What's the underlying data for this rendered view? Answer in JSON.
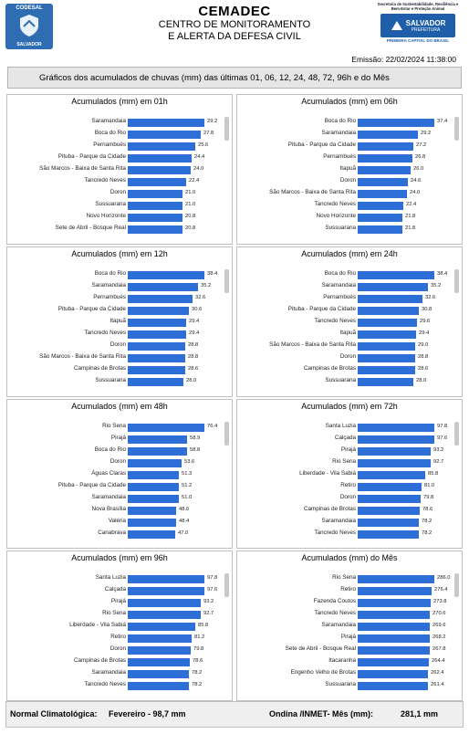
{
  "header": {
    "logo_left_top": "CODESAL",
    "logo_left_bottom": "SALVADOR",
    "title": "CEMADEC",
    "subtitle_1": "CENTRO DE MONITORAMENTO",
    "subtitle_2": "E ALERTA DA DEFESA CIVIL",
    "secretaria": "Secretaria de Sustentabilidade, Resiliência e Bem-Estar e Proteção Animal",
    "logo_right": "SALVADOR",
    "logo_right_sub": "PREFEITURA",
    "logo_right_caption": "PRIMEIRA CAPITAL DO BRASIL",
    "emissao": "Emissão: 22/02/2024 11:38:00"
  },
  "banner": "Gráficos dos acumulados de chuvas (mm) das últimas 01, 06, 12, 24, 48, 72, 96h e do Mês",
  "colors": {
    "bar": "#2d6fd6"
  },
  "chart_data": [
    {
      "type": "bar",
      "title": "Acumulados (mm) em 01h",
      "categories": [
        "Saramandaia",
        "Boca do Rio",
        "Pernambués",
        "Pituba - Parque da Cidade",
        "São Marcos - Baixa de Santa Rita",
        "Tancredo Neves",
        "Doron",
        "Sussuarana",
        "Novo Horizonte",
        "Sete de Abril - Bosque Real"
      ],
      "values": [
        29.2,
        27.8,
        25.6,
        24.4,
        24.0,
        22.4,
        21.0,
        21.0,
        20.8,
        20.8
      ]
    },
    {
      "type": "bar",
      "title": "Acumulados (mm) em 06h",
      "categories": [
        "Boca do Rio",
        "Saramandaia",
        "Pituba - Parque da Cidade",
        "Pernambués",
        "Itapuã",
        "Doron",
        "São Marcos - Baixa de Santa Rita",
        "Tancredo Neves",
        "Novo Horizonte",
        "Sussuarana"
      ],
      "values": [
        37.4,
        29.2,
        27.2,
        26.8,
        26.0,
        24.6,
        24.0,
        22.4,
        21.8,
        21.8
      ]
    },
    {
      "type": "bar",
      "title": "Acumulados (mm) em 12h",
      "categories": [
        "Boca do Rio",
        "Saramandaia",
        "Pernambués",
        "Pituba - Parque da Cidade",
        "Itapuã",
        "Tancredo Neves",
        "Doron",
        "São Marcos - Baixa de Santa Rita",
        "Campinas de Brotas",
        "Sussuarana"
      ],
      "values": [
        38.4,
        35.2,
        32.6,
        30.6,
        29.4,
        29.4,
        28.8,
        28.8,
        28.6,
        28.0
      ]
    },
    {
      "type": "bar",
      "title": "Acumulados (mm) em 24h",
      "categories": [
        "Boca do Rio",
        "Saramandaia",
        "Pernambués",
        "Pituba - Parque da Cidade",
        "Tancredo Neves",
        "Itapuã",
        "São Marcos - Baixa de Santa Rita",
        "Doron",
        "Campinas de Brotas",
        "Sussuarana"
      ],
      "values": [
        38.4,
        35.2,
        32.6,
        30.8,
        29.6,
        29.4,
        29.0,
        28.8,
        28.6,
        28.0
      ]
    },
    {
      "type": "bar",
      "title": "Acumulados (mm) em 48h",
      "categories": [
        "Rio Sena",
        "Pirajá",
        "Boca do Rio",
        "Doron",
        "Águas Claras",
        "Pituba - Parque da Cidade",
        "Saramandaia",
        "Nova Brasília",
        "Valéria",
        "Canabrava"
      ],
      "values": [
        76.4,
        58.9,
        58.8,
        53.6,
        51.3,
        51.2,
        51.0,
        48.6,
        48.4,
        47.0
      ]
    },
    {
      "type": "bar",
      "title": "Acumulados (mm) em 72h",
      "categories": [
        "Santa Luzia",
        "Calçada",
        "Pirajá",
        "Rio Sena",
        "Liberdade - Vila Sabiá",
        "Retiro",
        "Doron",
        "Campinas de Brotas",
        "Saramandaia",
        "Tancredo Neves"
      ],
      "values": [
        97.8,
        97.6,
        93.2,
        92.7,
        85.8,
        81.0,
        79.8,
        78.6,
        78.2,
        78.2
      ]
    },
    {
      "type": "bar",
      "title": "Acumulados (mm) em 96h",
      "categories": [
        "Santa Luzia",
        "Calçada",
        "Pirajá",
        "Rio Sena",
        "Liberdade - Vila Sabiá",
        "Retiro",
        "Doron",
        "Campinas de Brotas",
        "Saramandaia",
        "Tancredo Neves"
      ],
      "values": [
        97.8,
        97.6,
        93.2,
        92.7,
        85.8,
        81.2,
        79.8,
        78.6,
        78.2,
        78.2
      ]
    },
    {
      "type": "bar",
      "title": "Acumulados (mm) do Mês",
      "categories": [
        "Rio Sena",
        "Retiro",
        "Fazenda Coutos",
        "Tancredo Neves",
        "Saramandaia",
        "Pirajá",
        "Sete de Abril - Bosque Real",
        "Itacaranha",
        "Engenho Velho de Brotas",
        "Sussuarana"
      ],
      "values": [
        286.0,
        276.4,
        273.8,
        270.6,
        269.6,
        268.2,
        267.8,
        264.4,
        262.4,
        261.4
      ]
    }
  ],
  "footer": {
    "label_1": "Normal Climatológica:",
    "value_1": "Fevereiro - 98,7 mm",
    "label_2": "Ondina /INMET- Mês (mm):",
    "value_2": "281,1 mm"
  }
}
